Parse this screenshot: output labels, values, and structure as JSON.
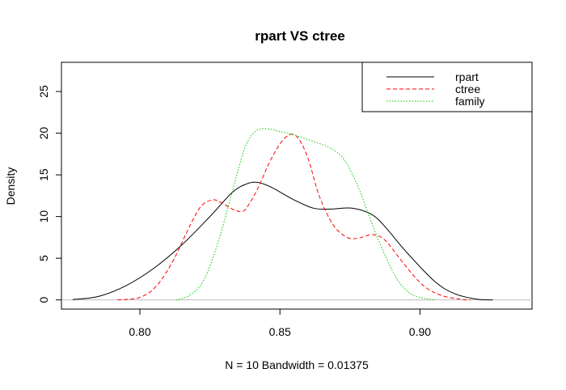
{
  "chart_data": {
    "type": "line",
    "title": "rpart VS ctree",
    "xlabel": "N = 10   Bandwidth = 0.01375",
    "ylabel": "Density",
    "xlim": [
      0.772,
      0.94
    ],
    "ylim": [
      -1.1,
      28.5
    ],
    "x_ticks": [
      0.8,
      0.85,
      0.9
    ],
    "x_tick_labels": [
      "0.80",
      "0.85",
      "0.90"
    ],
    "y_ticks": [
      0,
      5,
      10,
      15,
      20,
      25
    ],
    "y_tick_labels": [
      "0",
      "5",
      "10",
      "15",
      "20",
      "25"
    ],
    "zero_line": true,
    "grid": false,
    "legend": {
      "placement": "top-right",
      "entries": [
        "rpart",
        "ctree",
        "family"
      ]
    },
    "series": [
      {
        "name": "rpart",
        "color": "#000000",
        "dash": "solid",
        "x": [
          0.776,
          0.785,
          0.795,
          0.805,
          0.815,
          0.825,
          0.833,
          0.838,
          0.842,
          0.847,
          0.855,
          0.862,
          0.868,
          0.876,
          0.883,
          0.888,
          0.895,
          0.905,
          0.912,
          0.92,
          0.926
        ],
        "y": [
          0.05,
          0.4,
          1.7,
          3.8,
          6.6,
          10.0,
          12.9,
          13.9,
          14.1,
          13.5,
          12.0,
          11.0,
          10.9,
          11.0,
          10.2,
          8.6,
          5.8,
          2.3,
          0.8,
          0.1,
          0.0
        ]
      },
      {
        "name": "ctree",
        "color": "#ff0000",
        "dash": "dashed",
        "x": [
          0.792,
          0.8,
          0.806,
          0.812,
          0.818,
          0.822,
          0.826,
          0.829,
          0.833,
          0.836,
          0.838,
          0.842,
          0.847,
          0.852,
          0.856,
          0.86,
          0.864,
          0.869,
          0.874,
          0.878,
          0.882,
          0.885,
          0.888,
          0.892,
          0.897,
          0.902,
          0.908,
          0.914,
          0.918
        ],
        "y": [
          0.0,
          0.3,
          1.7,
          4.8,
          9.0,
          11.3,
          12.0,
          11.7,
          10.9,
          10.6,
          11.0,
          13.3,
          17.0,
          19.5,
          19.6,
          17.0,
          12.5,
          9.0,
          7.5,
          7.4,
          7.8,
          7.7,
          7.0,
          5.3,
          3.2,
          1.5,
          0.5,
          0.1,
          0.0
        ]
      },
      {
        "name": "family",
        "color": "#00cc00",
        "dash": "dotted",
        "x": [
          0.813,
          0.818,
          0.823,
          0.828,
          0.833,
          0.837,
          0.84,
          0.843,
          0.846,
          0.85,
          0.855,
          0.862,
          0.868,
          0.873,
          0.878,
          0.883,
          0.888,
          0.892,
          0.896,
          0.9,
          0.905
        ],
        "y": [
          0.0,
          0.6,
          2.5,
          7.0,
          13.0,
          17.8,
          19.8,
          20.5,
          20.5,
          20.2,
          19.8,
          19.0,
          18.2,
          16.8,
          13.5,
          9.0,
          5.0,
          2.4,
          0.9,
          0.3,
          0.0
        ]
      }
    ]
  }
}
